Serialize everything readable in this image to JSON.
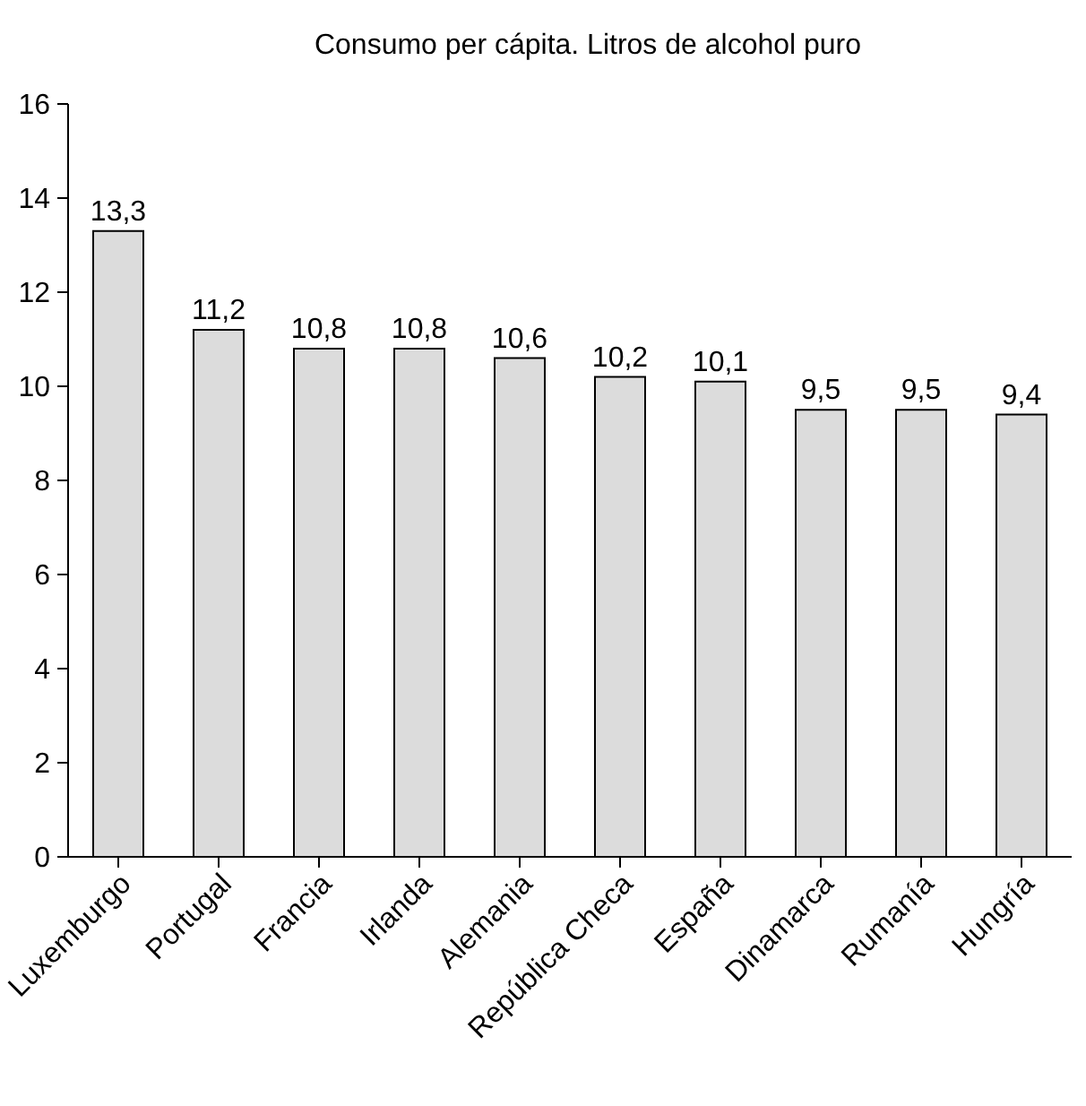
{
  "chart_data": {
    "type": "bar",
    "title": "Consumo per cápita. Litros de alcohol puro",
    "categories": [
      "Luxemburgo",
      "Portugal",
      "Francia",
      "Irlanda",
      "Alemania",
      "República Checa",
      "España",
      "Dinamarca",
      "Rumanía",
      "Hungría"
    ],
    "values": [
      13.3,
      11.2,
      10.8,
      10.8,
      10.6,
      10.2,
      10.1,
      9.5,
      9.5,
      9.4
    ],
    "value_labels": [
      "13,3",
      "11,2",
      "10,8",
      "10,8",
      "10,6",
      "10,2",
      "10,1",
      "9,5",
      "9,5",
      "9,4"
    ],
    "color": "#dcdcdc",
    "ylim": [
      0,
      16
    ],
    "yticks": [
      0,
      2,
      4,
      6,
      8,
      10,
      12,
      14,
      16
    ],
    "grid": false
  }
}
